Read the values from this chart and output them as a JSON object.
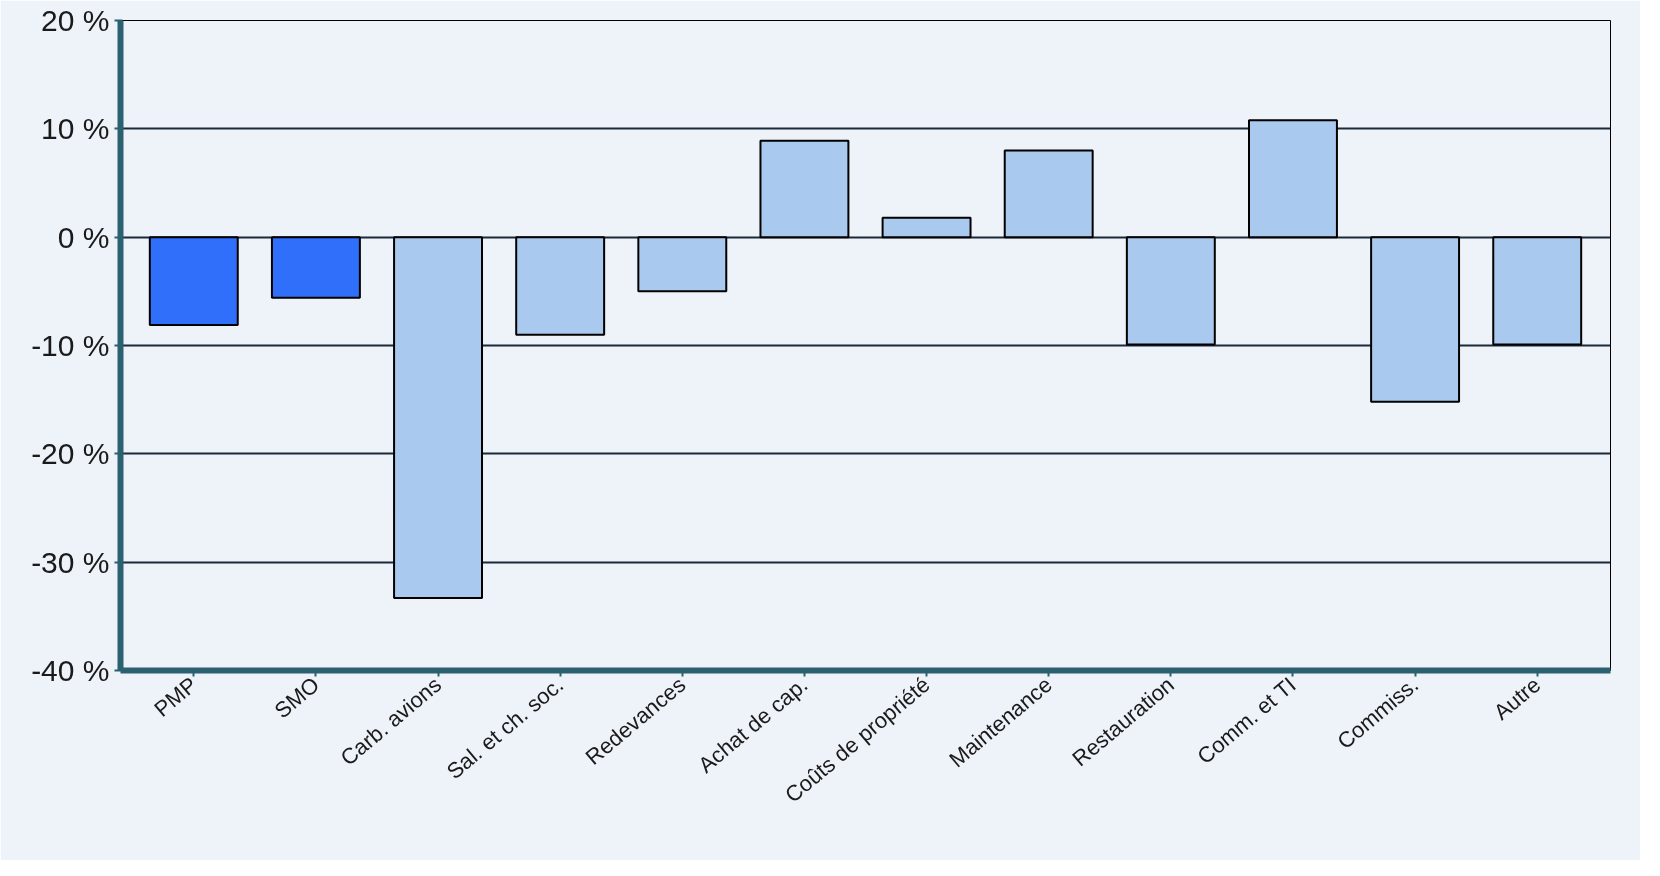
{
  "chart_data": {
    "type": "bar",
    "categories": [
      "PMP",
      "SMO",
      "Carb. avions",
      "Sal. et ch. soc.",
      "Redevances",
      "Achat de cap.",
      "Coûts de propriété",
      "Maintenance",
      "Restauration",
      "Comm. et TI",
      "Commiss.",
      "Autre"
    ],
    "values": [
      -8.1,
      -5.6,
      -33.3,
      -9.0,
      -5.0,
      8.9,
      1.8,
      8.0,
      -9.9,
      10.8,
      -15.2,
      -9.9
    ],
    "colors": [
      "#2f6ffa",
      "#2f6ffa",
      "#a9c9ee",
      "#a9c9ee",
      "#a9c9ee",
      "#a9c9ee",
      "#a9c9ee",
      "#a9c9ee",
      "#a9c9ee",
      "#a9c9ee",
      "#a9c9ee",
      "#a9c9ee"
    ],
    "ylim": [
      -40,
      20
    ],
    "yticks": [
      {
        "value": -40,
        "label": "-40 %"
      },
      {
        "value": -30,
        "label": "-30 %"
      },
      {
        "value": -20,
        "label": "-20 %"
      },
      {
        "value": -10,
        "label": "-10 %"
      },
      {
        "value": 0,
        "label": "0 %"
      },
      {
        "value": 10,
        "label": "10 %"
      },
      {
        "value": 20,
        "label": "20 %"
      }
    ],
    "grid": "y"
  }
}
